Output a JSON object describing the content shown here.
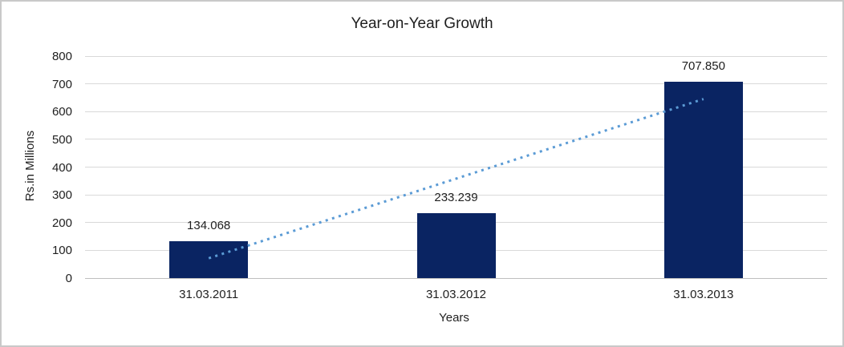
{
  "chart_data": {
    "type": "bar",
    "title": "Year-on-Year Growth",
    "categories": [
      "31.03.2011",
      "31.03.2012",
      "31.03.2013"
    ],
    "values": [
      134.068,
      233.239,
      707.85
    ],
    "data_labels": [
      "134.068",
      "233.239",
      "707.850"
    ],
    "xlabel": "Years",
    "ylabel": "Rs.in Millions",
    "ylim": [
      0,
      800
    ],
    "yticks": [
      0,
      100,
      200,
      300,
      400,
      500,
      600,
      700,
      800
    ],
    "grid": true,
    "legend": false,
    "trendline": {
      "style": "dotted",
      "start_value": 71.5,
      "end_value": 645.3
    },
    "colors": {
      "bar": "#0a2462",
      "trendline": "#5b9bd5",
      "gridline": "#d9d9d9",
      "axis_line": "#bfbfbf",
      "text": "#1f1f1f",
      "border": "#c9c9c9",
      "background": "#ffffff"
    }
  }
}
